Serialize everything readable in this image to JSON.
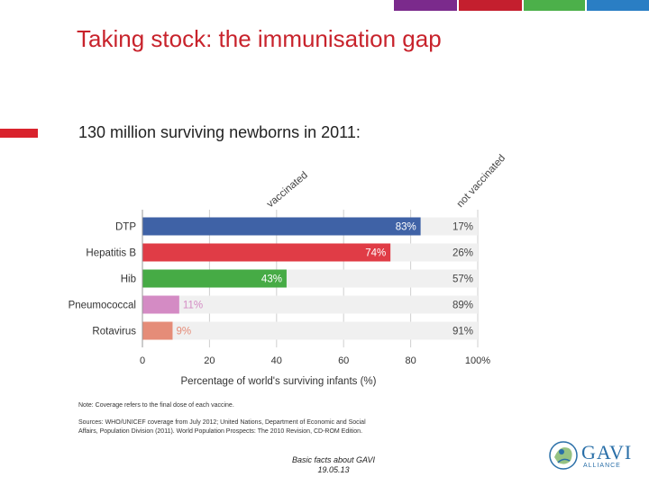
{
  "header": {
    "title": "Taking stock: the immunisation gap",
    "subtitle": "130 million surviving newborns in 2011:",
    "bar_colors": [
      "#ffffff",
      "#7b2a8c",
      "#c41f2e",
      "#4cb04a",
      "#2a7ec4"
    ]
  },
  "chart_data": {
    "type": "bar",
    "orientation": "horizontal",
    "stacked": true,
    "categories": [
      "DTP",
      "Hepatitis B",
      "Hib",
      "Pneumococcal",
      "Rotavirus"
    ],
    "series": [
      {
        "name": "vaccinated",
        "values": [
          83,
          74,
          43,
          11,
          9
        ],
        "colors": [
          "#3f62a6",
          "#e03c46",
          "#46ab45",
          "#d48bc4",
          "#e58c78"
        ]
      },
      {
        "name": "not vaccinated",
        "values": [
          17,
          26,
          57,
          89,
          91
        ],
        "color": "#f0f0f0"
      }
    ],
    "value_labels": {
      "vaccinated": [
        "83%",
        "74%",
        "43%",
        "11%",
        "9%"
      ],
      "not_vaccinated": [
        "17%",
        "26%",
        "57%",
        "89%",
        "91%"
      ]
    },
    "xlabel": "Percentage of world's surviving infants (%)",
    "xlim": [
      0,
      100
    ],
    "xticks": [
      "0",
      "20",
      "40",
      "60",
      "80",
      "100%"
    ],
    "grid": true
  },
  "notes": {
    "note": "Note: Coverage refers to the final dose of each vaccine.",
    "sources": "Sources: WHO/UNICEF coverage from July 2012; United Nations, Department of Economic and Social Affairs, Population Division (2011). World Population Prospects: The 2010 Revision, CD-ROM Edition."
  },
  "footer": {
    "line1": "Basic facts about GAVI",
    "line2": "19.05.13"
  },
  "logo": {
    "name": "GAVI",
    "sub": "ALLIANCE",
    "color": "#2a6fa8"
  }
}
